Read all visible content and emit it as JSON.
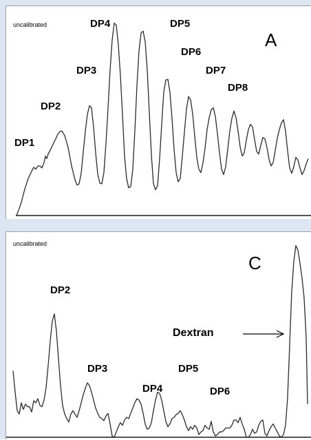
{
  "chart_data": [
    {
      "type": "line",
      "status_text": "uncalibrated",
      "panel_letter": "A",
      "peak_labels": [
        "DP1",
        "DP2",
        "DP3",
        "DP4",
        "DP5",
        "DP6",
        "DP7",
        "DP8"
      ],
      "series": [
        {
          "x": [
            15,
            18,
            22,
            27,
            32,
            37,
            40,
            43,
            46,
            49,
            52,
            55,
            57,
            59,
            61,
            63,
            66,
            69,
            72,
            75,
            78,
            81,
            85,
            90,
            95,
            100,
            103,
            106,
            109,
            112,
            115,
            118,
            121,
            124,
            127,
            130,
            133,
            136,
            139,
            142,
            145,
            148,
            151,
            154,
            157,
            160,
            163,
            166,
            169,
            172,
            175,
            178,
            181,
            184,
            187,
            190,
            193,
            196,
            199,
            202,
            205,
            208,
            211,
            214,
            217,
            220,
            223,
            226,
            229,
            232,
            235,
            238,
            241,
            244,
            247,
            250,
            253,
            256,
            259,
            262,
            265,
            268,
            271,
            274,
            277,
            280,
            283,
            286,
            289,
            292,
            295,
            298,
            301,
            304,
            307,
            310,
            313,
            316,
            319,
            322,
            325,
            328,
            331,
            334,
            337,
            340,
            343,
            346,
            349,
            352,
            355,
            358,
            361,
            364,
            367,
            370,
            373,
            376,
            379,
            382,
            385,
            388,
            391,
            394,
            397,
            400,
            403,
            406,
            409,
            412,
            415,
            418,
            421,
            424,
            427,
            430,
            433,
            436,
            439
          ],
          "y": [
            0,
            8,
            20,
            40,
            56,
            67,
            73,
            70,
            75,
            75,
            72,
            80,
            90,
            86,
            93,
            97,
            103,
            110,
            116,
            123,
            127,
            128,
            121,
            103,
            75,
            54,
            46,
            48,
            64,
            96,
            127,
            153,
            166,
            163,
            134,
            95,
            63,
            49,
            48,
            65,
            109,
            162,
            220,
            265,
            291,
            288,
            258,
            212,
            153,
            90,
            56,
            42,
            44,
            70,
            128,
            196,
            249,
            276,
            279,
            263,
            220,
            156,
            92,
            48,
            39,
            45,
            86,
            138,
            187,
            205,
            206,
            186,
            147,
            100,
            65,
            51,
            56,
            90,
            126,
            161,
            180,
            175,
            154,
            120,
            88,
            70,
            65,
            80,
            102,
            130,
            148,
            160,
            163,
            150,
            124,
            95,
            70,
            62,
            74,
            100,
            128,
            147,
            158,
            148,
            128,
            104,
            90,
            95,
            114,
            130,
            138,
            134,
            115,
            97,
            93,
            106,
            118,
            116,
            103,
            85,
            75,
            80,
            98,
            117,
            130,
            140,
            145,
            128,
            98,
            72,
            64,
            74,
            88,
            84,
            72,
            62,
            68,
            78,
            86
          ]
        }
      ],
      "xlim": [
        0,
        444
      ],
      "ylim": [
        0,
        300
      ]
    },
    {
      "type": "line",
      "status_text": "uncalibrated",
      "panel_letter": "C",
      "peak_labels": [
        "DP2",
        "DP3",
        "DP4",
        "DP5",
        "DP6"
      ],
      "annotation": "Dextran",
      "series": [
        {
          "x": [
            10,
            13,
            16,
            19,
            22,
            25,
            28,
            31,
            34,
            37,
            40,
            43,
            46,
            49,
            52,
            55,
            58,
            61,
            64,
            67,
            70,
            73,
            76,
            79,
            82,
            85,
            88,
            91,
            94,
            97,
            100,
            103,
            106,
            109,
            112,
            115,
            118,
            121,
            124,
            127,
            130,
            133,
            136,
            139,
            142,
            145,
            148,
            151,
            154,
            157,
            160,
            163,
            166,
            169,
            172,
            175,
            178,
            181,
            184,
            187,
            190,
            193,
            196,
            199,
            202,
            205,
            208,
            211,
            214,
            217,
            220,
            223,
            226,
            229,
            232,
            235,
            238,
            241,
            244,
            247,
            250,
            253,
            256,
            259,
            262,
            265,
            268,
            271,
            274,
            277,
            280,
            283,
            286,
            289,
            292,
            295,
            298,
            301,
            304,
            307,
            310,
            313,
            316,
            319,
            322,
            325,
            328,
            331,
            334,
            337,
            340,
            343,
            346,
            349,
            352,
            355,
            358,
            361,
            364,
            367,
            370,
            373,
            376,
            379,
            382,
            385,
            388,
            391,
            394,
            397,
            400,
            403,
            406,
            409,
            412,
            415,
            418,
            421,
            424,
            427,
            430,
            433,
            436,
            438
          ],
          "y": [
            100,
            68,
            40,
            35,
            52,
            42,
            50,
            46,
            46,
            38,
            55,
            52,
            58,
            48,
            46,
            56,
            75,
            108,
            145,
            175,
            186,
            160,
            118,
            78,
            48,
            35,
            28,
            23,
            35,
            40,
            35,
            30,
            40,
            52,
            64,
            74,
            82,
            78,
            68,
            56,
            44,
            36,
            30,
            28,
            25,
            32,
            36,
            20,
            2,
            0,
            8,
            16,
            22,
            18,
            26,
            30,
            28,
            36,
            44,
            52,
            58,
            56,
            50,
            36,
            20,
            12,
            14,
            22,
            40,
            56,
            68,
            66,
            56,
            40,
            24,
            16,
            20,
            28,
            30,
            34,
            36,
            40,
            34,
            26,
            16,
            10,
            16,
            12,
            18,
            14,
            4,
            8,
            10,
            18,
            14,
            12,
            24,
            8,
            2,
            4,
            8,
            8,
            10,
            14,
            14,
            14,
            18,
            26,
            26,
            22,
            30,
            20,
            12,
            0,
            0,
            4,
            12,
            6,
            8,
            18,
            24,
            26,
            6,
            2,
            10,
            16,
            20,
            14,
            8,
            2,
            0,
            4,
            18,
            60,
            140,
            220,
            265,
            289,
            282,
            262,
            240,
            210,
            150,
            50
          ]
        }
      ],
      "xlim": [
        0,
        444
      ],
      "ylim": [
        0,
        300
      ]
    }
  ]
}
